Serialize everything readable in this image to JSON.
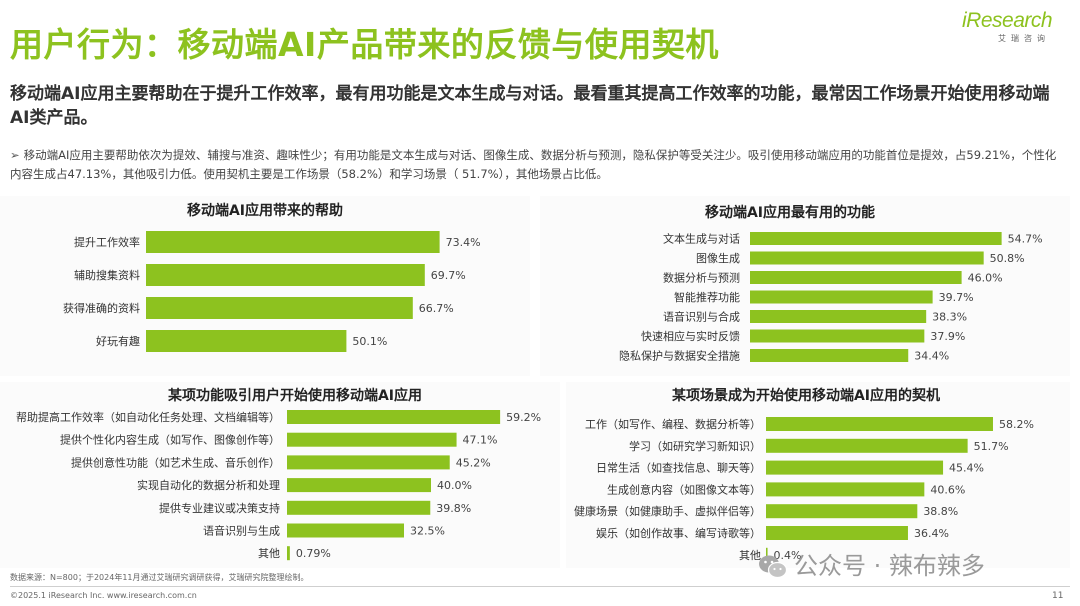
{
  "title": "用户行为：移动端AI产品带来的反馈与使用契机",
  "logo": {
    "brand": "iResearch",
    "sub": "艾瑞咨询"
  },
  "subtitle": "移动端AI应用主要帮助在于提升工作效率，最有用功能是文本生成与对话。最看重其提高工作效率的功能，最常因工作场景开始使用移动端AI类产品。",
  "bullet": "移动端AI应用主要帮助依次为提效、辅搜与准资、趣味性少；有用功能是文本生成与对话、图像生成、数据分析与预测，隐私保护等受关注少。吸引使用移动端应用的功能首位是提效，占59.21%，个性化内容生成占47.13%，其他吸引力低。使用契机主要是工作场景（58.2%）和学习场景（ 51.7%），其他场景占比低。",
  "colors": {
    "accent": "#8DC21F"
  },
  "chart_data": [
    {
      "type": "bar",
      "orientation": "horizontal",
      "title": "移动端AI应用带来的帮助",
      "categories": [
        "提升工作效率",
        "辅助搜集资料",
        "获得准确的资料",
        "好玩有趣"
      ],
      "values": [
        73.4,
        69.7,
        66.7,
        50.1
      ],
      "labels": [
        "73.4%",
        "69.7%",
        "66.7%",
        "50.1%"
      ]
    },
    {
      "type": "bar",
      "orientation": "horizontal",
      "title": "移动端AI应用最有用的功能",
      "categories": [
        "文本生成与对话",
        "图像生成",
        "数据分析与预测",
        "智能推荐功能",
        "语音识别与合成",
        "快速相应与实时反馈",
        "隐私保护与数据安全措施"
      ],
      "values": [
        54.7,
        50.8,
        46.0,
        39.7,
        38.3,
        37.9,
        34.4
      ],
      "labels": [
        "54.7%",
        "50.8%",
        "46.0%",
        "39.7%",
        "38.3%",
        "37.9%",
        "34.4%"
      ]
    },
    {
      "type": "bar",
      "orientation": "horizontal",
      "title": "某项功能吸引用户开始使用移动端AI应用",
      "categories": [
        "帮助提高工作效率（如自动化任务处理、文档编辑等）",
        "提供个性化内容生成（如写作、图像创作等）",
        "提供创意性功能（如艺术生成、音乐创作）",
        "实现自动化的数据分析和处理",
        "提供专业建议或决策支持",
        "语音识别与生成",
        "其他"
      ],
      "values": [
        59.2,
        47.1,
        45.2,
        40.0,
        39.8,
        32.5,
        0.79
      ],
      "labels": [
        "59.2%",
        "47.1%",
        "45.2%",
        "40.0%",
        "39.8%",
        "32.5%",
        "0.79%"
      ]
    },
    {
      "type": "bar",
      "orientation": "horizontal",
      "title": "某项场景成为开始使用移动端AI应用的契机",
      "categories": [
        "工作（如写作、编程、数据分析等）",
        "学习（如研究学习新知识）",
        "日常生活（如查找信息、聊天等）",
        "生成创意内容（如图像文本等）",
        "健康场景（如健康助手、虚拟伴侣等）",
        "娱乐（如创作故事、编写诗歌等）",
        "其他"
      ],
      "values": [
        58.2,
        51.7,
        45.4,
        40.6,
        38.8,
        36.4,
        0.4
      ],
      "labels": [
        "58.2%",
        "51.7%",
        "45.4%",
        "40.6%",
        "38.8%",
        "36.4%",
        "0.4%"
      ]
    }
  ],
  "source": "数据来源：N=800；于2024年11月通过艾瑞研究调研获得，艾瑞研究院整理绘制。",
  "copyright": "©2025.1 iResearch Inc.                www.iresearch.com.cn",
  "page_number": "11",
  "watermark": "公众号 · 辣布辣多",
  "watermark_icon": "wechat-icon"
}
